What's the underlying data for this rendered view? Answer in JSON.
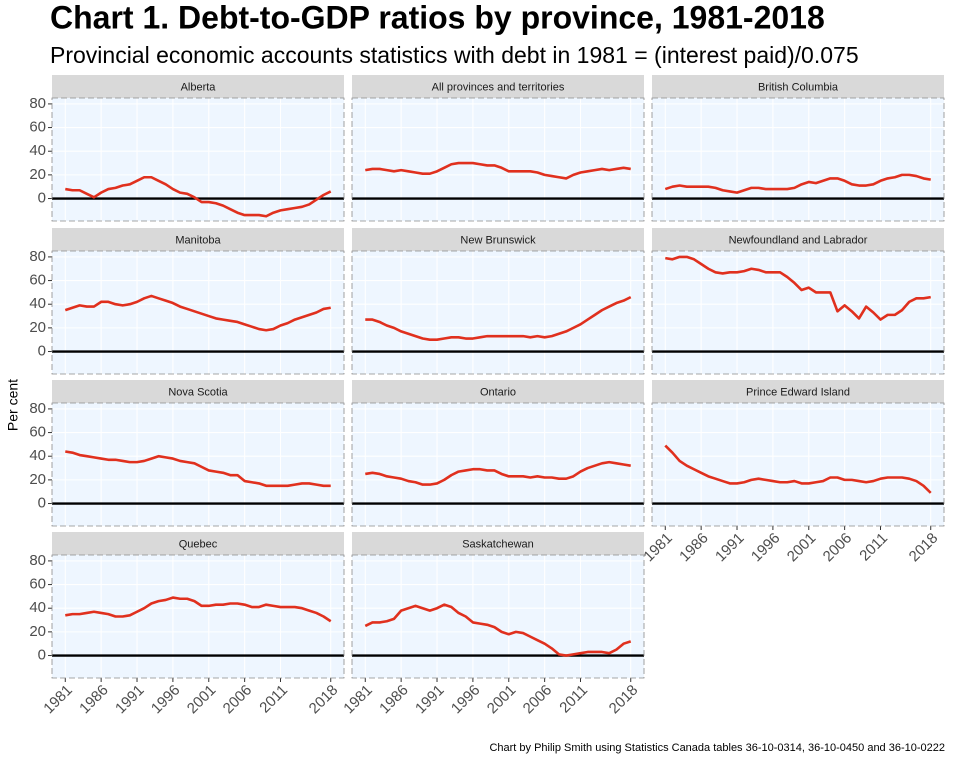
{
  "title": "Chart 1. Debt-to-GDP ratios by province, 1981-2018",
  "subtitle": "Provincial economic accounts statistics with debt in 1981 = (interest paid)/0.075",
  "ylabel": "Per cent",
  "caption": "Chart by Philip Smith using Statistics Canada tables 36-10-0314, 36-10-0450 and 36-10-0222",
  "chart_data": [
    {
      "type": "line",
      "title": "Alberta",
      "color": "#e0301e",
      "grid": true,
      "xlim": [
        1979.15,
        2019.85
      ],
      "ylim": [
        -19,
        85
      ],
      "xticks": [
        1981,
        1986,
        1991,
        1996,
        2001,
        2006,
        2011,
        2018
      ],
      "yticks": [
        0,
        20,
        40,
        60,
        80
      ],
      "x": [
        1981,
        1982,
        1983,
        1984,
        1985,
        1986,
        1987,
        1988,
        1989,
        1990,
        1991,
        1992,
        1993,
        1994,
        1995,
        1996,
        1997,
        1998,
        1999,
        2000,
        2001,
        2002,
        2003,
        2004,
        2005,
        2006,
        2007,
        2008,
        2009,
        2010,
        2011,
        2012,
        2013,
        2014,
        2015,
        2016,
        2017,
        2018
      ],
      "values": [
        8,
        7,
        7,
        4,
        1,
        5,
        8,
        9,
        11,
        12,
        15,
        18,
        18,
        15,
        12,
        8,
        5,
        4,
        1,
        -3,
        -3,
        -4,
        -6,
        -9,
        -12,
        -14,
        -14,
        -14,
        -15,
        -12,
        -10,
        -9,
        -8,
        -7,
        -5,
        -1,
        3,
        6
      ]
    },
    {
      "type": "line",
      "title": "All provinces and territories",
      "color": "#e0301e",
      "grid": true,
      "xlim": [
        1979.15,
        2019.85
      ],
      "ylim": [
        -19,
        85
      ],
      "xticks": [
        1981,
        1986,
        1991,
        1996,
        2001,
        2006,
        2011,
        2018
      ],
      "yticks": [
        0,
        20,
        40,
        60,
        80
      ],
      "x": [
        1981,
        1982,
        1983,
        1984,
        1985,
        1986,
        1987,
        1988,
        1989,
        1990,
        1991,
        1992,
        1993,
        1994,
        1995,
        1996,
        1997,
        1998,
        1999,
        2000,
        2001,
        2002,
        2003,
        2004,
        2005,
        2006,
        2007,
        2008,
        2009,
        2010,
        2011,
        2012,
        2013,
        2014,
        2015,
        2016,
        2017,
        2018
      ],
      "values": [
        24,
        25,
        25,
        24,
        23,
        24,
        23,
        22,
        21,
        21,
        23,
        26,
        29,
        30,
        30,
        30,
        29,
        28,
        28,
        26,
        23,
        23,
        23,
        23,
        22,
        20,
        19,
        18,
        17,
        20,
        22,
        23,
        24,
        25,
        24,
        25,
        26,
        25
      ]
    },
    {
      "type": "line",
      "title": "British Columbia",
      "color": "#e0301e",
      "grid": true,
      "xlim": [
        1979.15,
        2019.85
      ],
      "ylim": [
        -19,
        85
      ],
      "xticks": [
        1981,
        1986,
        1991,
        1996,
        2001,
        2006,
        2011,
        2018
      ],
      "yticks": [
        0,
        20,
        40,
        60,
        80
      ],
      "x": [
        1981,
        1982,
        1983,
        1984,
        1985,
        1986,
        1987,
        1988,
        1989,
        1990,
        1991,
        1992,
        1993,
        1994,
        1995,
        1996,
        1997,
        1998,
        1999,
        2000,
        2001,
        2002,
        2003,
        2004,
        2005,
        2006,
        2007,
        2008,
        2009,
        2010,
        2011,
        2012,
        2013,
        2014,
        2015,
        2016,
        2017,
        2018
      ],
      "values": [
        8,
        10,
        11,
        10,
        10,
        10,
        10,
        9,
        7,
        6,
        5,
        7,
        9,
        9,
        8,
        8,
        8,
        8,
        9,
        12,
        14,
        13,
        15,
        17,
        17,
        15,
        12,
        11,
        11,
        12,
        15,
        17,
        18,
        20,
        20,
        19,
        17,
        16
      ]
    },
    {
      "type": "line",
      "title": "Manitoba",
      "color": "#e0301e",
      "grid": true,
      "xlim": [
        1979.15,
        2019.85
      ],
      "ylim": [
        -19,
        85
      ],
      "xticks": [
        1981,
        1986,
        1991,
        1996,
        2001,
        2006,
        2011,
        2018
      ],
      "yticks": [
        0,
        20,
        40,
        60,
        80
      ],
      "x": [
        1981,
        1982,
        1983,
        1984,
        1985,
        1986,
        1987,
        1988,
        1989,
        1990,
        1991,
        1992,
        1993,
        1994,
        1995,
        1996,
        1997,
        1998,
        1999,
        2000,
        2001,
        2002,
        2003,
        2004,
        2005,
        2006,
        2007,
        2008,
        2009,
        2010,
        2011,
        2012,
        2013,
        2014,
        2015,
        2016,
        2017,
        2018
      ],
      "values": [
        35,
        37,
        39,
        38,
        38,
        42,
        42,
        40,
        39,
        40,
        42,
        45,
        47,
        45,
        43,
        41,
        38,
        36,
        34,
        32,
        30,
        28,
        27,
        26,
        25,
        23,
        21,
        19,
        18,
        19,
        22,
        24,
        27,
        29,
        31,
        33,
        36,
        37
      ]
    },
    {
      "type": "line",
      "title": "New Brunswick",
      "color": "#e0301e",
      "grid": true,
      "xlim": [
        1979.15,
        2019.85
      ],
      "ylim": [
        -19,
        85
      ],
      "xticks": [
        1981,
        1986,
        1991,
        1996,
        2001,
        2006,
        2011,
        2018
      ],
      "yticks": [
        0,
        20,
        40,
        60,
        80
      ],
      "x": [
        1981,
        1982,
        1983,
        1984,
        1985,
        1986,
        1987,
        1988,
        1989,
        1990,
        1991,
        1992,
        1993,
        1994,
        1995,
        1996,
        1997,
        1998,
        1999,
        2000,
        2001,
        2002,
        2003,
        2004,
        2005,
        2006,
        2007,
        2008,
        2009,
        2010,
        2011,
        2012,
        2013,
        2014,
        2015,
        2016,
        2017,
        2018
      ],
      "values": [
        27,
        27,
        25,
        22,
        20,
        17,
        15,
        13,
        11,
        10,
        10,
        11,
        12,
        12,
        11,
        11,
        12,
        13,
        13,
        13,
        13,
        13,
        13,
        12,
        13,
        12,
        13,
        15,
        17,
        20,
        23,
        27,
        31,
        35,
        38,
        41,
        43,
        46
      ]
    },
    {
      "type": "line",
      "title": "Newfoundland and Labrador",
      "color": "#e0301e",
      "grid": true,
      "xlim": [
        1979.15,
        2019.85
      ],
      "ylim": [
        -19,
        85
      ],
      "xticks": [
        1981,
        1986,
        1991,
        1996,
        2001,
        2006,
        2011,
        2018
      ],
      "yticks": [
        0,
        20,
        40,
        60,
        80
      ],
      "x": [
        1981,
        1982,
        1983,
        1984,
        1985,
        1986,
        1987,
        1988,
        1989,
        1990,
        1991,
        1992,
        1993,
        1994,
        1995,
        1996,
        1997,
        1998,
        1999,
        2000,
        2001,
        2002,
        2003,
        2004,
        2005,
        2006,
        2007,
        2008,
        2009,
        2010,
        2011,
        2012,
        2013,
        2014,
        2015,
        2016,
        2017,
        2018
      ],
      "values": [
        79,
        78,
        80,
        80,
        78,
        74,
        70,
        67,
        66,
        67,
        67,
        68,
        70,
        69,
        67,
        67,
        67,
        63,
        58,
        52,
        54,
        50,
        50,
        50,
        34,
        39,
        34,
        28,
        38,
        33,
        27,
        31,
        31,
        35,
        42,
        45,
        45,
        46
      ]
    },
    {
      "type": "line",
      "title": "Nova Scotia",
      "color": "#e0301e",
      "grid": true,
      "xlim": [
        1979.15,
        2019.85
      ],
      "ylim": [
        -19,
        85
      ],
      "xticks": [
        1981,
        1986,
        1991,
        1996,
        2001,
        2006,
        2011,
        2018
      ],
      "yticks": [
        0,
        20,
        40,
        60,
        80
      ],
      "x": [
        1981,
        1982,
        1983,
        1984,
        1985,
        1986,
        1987,
        1988,
        1989,
        1990,
        1991,
        1992,
        1993,
        1994,
        1995,
        1996,
        1997,
        1998,
        1999,
        2000,
        2001,
        2002,
        2003,
        2004,
        2005,
        2006,
        2007,
        2008,
        2009,
        2010,
        2011,
        2012,
        2013,
        2014,
        2015,
        2016,
        2017,
        2018
      ],
      "values": [
        44,
        43,
        41,
        40,
        39,
        38,
        37,
        37,
        36,
        35,
        35,
        36,
        38,
        40,
        39,
        38,
        36,
        35,
        34,
        31,
        28,
        27,
        26,
        24,
        24,
        19,
        18,
        17,
        15,
        15,
        15,
        15,
        16,
        17,
        17,
        16,
        15,
        15
      ]
    },
    {
      "type": "line",
      "title": "Ontario",
      "color": "#e0301e",
      "grid": true,
      "xlim": [
        1979.15,
        2019.85
      ],
      "ylim": [
        -19,
        85
      ],
      "xticks": [
        1981,
        1986,
        1991,
        1996,
        2001,
        2006,
        2011,
        2018
      ],
      "yticks": [
        0,
        20,
        40,
        60,
        80
      ],
      "x": [
        1981,
        1982,
        1983,
        1984,
        1985,
        1986,
        1987,
        1988,
        1989,
        1990,
        1991,
        1992,
        1993,
        1994,
        1995,
        1996,
        1997,
        1998,
        1999,
        2000,
        2001,
        2002,
        2003,
        2004,
        2005,
        2006,
        2007,
        2008,
        2009,
        2010,
        2011,
        2012,
        2013,
        2014,
        2015,
        2016,
        2017,
        2018
      ],
      "values": [
        25,
        26,
        25,
        23,
        22,
        21,
        19,
        18,
        16,
        16,
        17,
        20,
        24,
        27,
        28,
        29,
        29,
        28,
        28,
        25,
        23,
        23,
        23,
        22,
        23,
        22,
        22,
        21,
        21,
        23,
        27,
        30,
        32,
        34,
        35,
        34,
        33,
        32
      ]
    },
    {
      "type": "line",
      "title": "Prince Edward Island",
      "color": "#e0301e",
      "grid": true,
      "xlim": [
        1979.15,
        2019.85
      ],
      "ylim": [
        -19,
        85
      ],
      "xticks": [
        1981,
        1986,
        1991,
        1996,
        2001,
        2006,
        2011,
        2018
      ],
      "yticks": [
        0,
        20,
        40,
        60,
        80
      ],
      "x": [
        1981,
        1982,
        1983,
        1984,
        1985,
        1986,
        1987,
        1988,
        1989,
        1990,
        1991,
        1992,
        1993,
        1994,
        1995,
        1996,
        1997,
        1998,
        1999,
        2000,
        2001,
        2002,
        2003,
        2004,
        2005,
        2006,
        2007,
        2008,
        2009,
        2010,
        2011,
        2012,
        2013,
        2014,
        2015,
        2016,
        2017,
        2018
      ],
      "values": [
        49,
        43,
        36,
        32,
        29,
        26,
        23,
        21,
        19,
        17,
        17,
        18,
        20,
        21,
        20,
        19,
        18,
        18,
        19,
        17,
        17,
        18,
        19,
        22,
        22,
        20,
        20,
        19,
        18,
        19,
        21,
        22,
        22,
        22,
        21,
        19,
        15,
        9
      ]
    },
    {
      "type": "line",
      "title": "Quebec",
      "color": "#e0301e",
      "grid": true,
      "xlim": [
        1979.15,
        2019.85
      ],
      "ylim": [
        -19,
        85
      ],
      "xticks": [
        1981,
        1986,
        1991,
        1996,
        2001,
        2006,
        2011,
        2018
      ],
      "yticks": [
        0,
        20,
        40,
        60,
        80
      ],
      "x": [
        1981,
        1982,
        1983,
        1984,
        1985,
        1986,
        1987,
        1988,
        1989,
        1990,
        1991,
        1992,
        1993,
        1994,
        1995,
        1996,
        1997,
        1998,
        1999,
        2000,
        2001,
        2002,
        2003,
        2004,
        2005,
        2006,
        2007,
        2008,
        2009,
        2010,
        2011,
        2012,
        2013,
        2014,
        2015,
        2016,
        2017,
        2018
      ],
      "values": [
        34,
        35,
        35,
        36,
        37,
        36,
        35,
        33,
        33,
        34,
        37,
        40,
        44,
        46,
        47,
        49,
        48,
        48,
        46,
        42,
        42,
        43,
        43,
        44,
        44,
        43,
        41,
        41,
        43,
        42,
        41,
        41,
        41,
        40,
        38,
        36,
        33,
        29
      ]
    },
    {
      "type": "line",
      "title": "Saskatchewan",
      "color": "#e0301e",
      "grid": true,
      "xlim": [
        1979.15,
        2019.85
      ],
      "ylim": [
        -19,
        85
      ],
      "xticks": [
        1981,
        1986,
        1991,
        1996,
        2001,
        2006,
        2011,
        2018
      ],
      "yticks": [
        0,
        20,
        40,
        60,
        80
      ],
      "x": [
        1981,
        1982,
        1983,
        1984,
        1985,
        1986,
        1987,
        1988,
        1989,
        1990,
        1991,
        1992,
        1993,
        1994,
        1995,
        1996,
        1997,
        1998,
        1999,
        2000,
        2001,
        2002,
        2003,
        2004,
        2005,
        2006,
        2007,
        2008,
        2009,
        2010,
        2011,
        2012,
        2013,
        2014,
        2015,
        2016,
        2017,
        2018
      ],
      "values": [
        25,
        28,
        28,
        29,
        31,
        38,
        40,
        42,
        40,
        38,
        40,
        43,
        41,
        36,
        33,
        28,
        27,
        26,
        24,
        20,
        18,
        20,
        19,
        16,
        13,
        10,
        6,
        1,
        0,
        1,
        2,
        3,
        3,
        3,
        2,
        5,
        10,
        12
      ]
    }
  ]
}
